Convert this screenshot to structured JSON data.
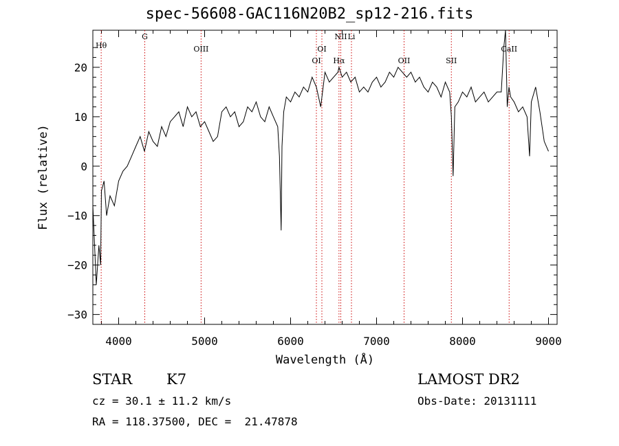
{
  "chart_data": {
    "type": "line",
    "title": "spec-56608-GAC116N20B2_sp12-216.fits",
    "xlabel": "Wavelength (Å)",
    "ylabel": "Flux (relative)",
    "xlim": [
      3700,
      9100
    ],
    "ylim": [
      -32,
      27.5
    ],
    "xticks": [
      4000,
      5000,
      6000,
      7000,
      8000,
      9000
    ],
    "yticks": [
      -30,
      -20,
      -10,
      0,
      10,
      20
    ],
    "grid": false,
    "series": [
      {
        "values_x": [
          3700,
          3740,
          3770,
          3790,
          3800,
          3830,
          3860,
          3900,
          3950,
          4000,
          4050,
          4100,
          4150,
          4200,
          4250,
          4300,
          4350,
          4400,
          4450,
          4500,
          4550,
          4600,
          4650,
          4700,
          4750,
          4800,
          4850,
          4900,
          4950,
          5000,
          5050,
          5100,
          5150,
          5200,
          5250,
          5300,
          5350,
          5400,
          5450,
          5500,
          5550,
          5600,
          5650,
          5700,
          5750,
          5800,
          5850,
          5870,
          5890,
          5900,
          5920,
          5950,
          6000,
          6050,
          6100,
          6150,
          6200,
          6250,
          6300,
          6350,
          6400,
          6450,
          6500,
          6550,
          6563,
          6600,
          6650,
          6700,
          6750,
          6800,
          6850,
          6900,
          6950,
          7000,
          7050,
          7100,
          7150,
          7200,
          7250,
          7300,
          7350,
          7400,
          7450,
          7500,
          7550,
          7600,
          7650,
          7700,
          7750,
          7800,
          7850,
          7870,
          7890,
          7910,
          7950,
          8000,
          8050,
          8100,
          8150,
          8200,
          8250,
          8300,
          8350,
          8400,
          8450,
          8480,
          8500,
          8520,
          8540,
          8560,
          8600,
          8650,
          8700,
          8750,
          8780,
          8800,
          8850,
          8900,
          8950,
          9000
        ],
        "values": [
          -8,
          -24,
          -16,
          -20,
          -5,
          -3,
          -10,
          -6,
          -8,
          -3,
          -1,
          0,
          2,
          4,
          6,
          3,
          7,
          5,
          4,
          8,
          6,
          9,
          10,
          11,
          8,
          12,
          10,
          11,
          8,
          9,
          7,
          5,
          6,
          11,
          12,
          10,
          11,
          8,
          9,
          12,
          11,
          13,
          10,
          9,
          12,
          10,
          8,
          2,
          -13,
          4,
          11,
          14,
          13,
          15,
          14,
          16,
          15,
          18,
          16,
          12,
          19,
          17,
          18,
          19,
          20,
          18,
          19,
          17,
          18,
          15,
          16,
          15,
          17,
          18,
          16,
          17,
          19,
          18,
          20,
          19,
          18,
          19,
          17,
          18,
          16,
          15,
          17,
          16,
          14,
          17,
          15,
          10,
          -2,
          12,
          13,
          15,
          14,
          16,
          13,
          14,
          15,
          13,
          14,
          15,
          15,
          24,
          28,
          12,
          16,
          14,
          13,
          11,
          12,
          10,
          2,
          13,
          16,
          11,
          5,
          3
        ]
      }
    ],
    "line_markers": [
      {
        "label": "Hθ",
        "x": 3797
      },
      {
        "label": "G",
        "x": 4304
      },
      {
        "label": "OIII",
        "x": 4959
      },
      {
        "label": "OI",
        "x": 6300
      },
      {
        "label": "OI",
        "x": 6364
      },
      {
        "label": "Hα",
        "x": 6563
      },
      {
        "label": "NII",
        "x": 6584
      },
      {
        "label": "Li",
        "x": 6708
      },
      {
        "label": "OII",
        "x": 7320
      },
      {
        "label": "SII",
        "x": 7870
      },
      {
        "label": "CaII",
        "x": 8542
      }
    ],
    "marker_color": "#cc0000"
  },
  "info": {
    "class": "STAR",
    "subclass": "K7",
    "survey": "LAMOST DR2",
    "cz": "cz = 30.1 ± 11.2 km/s",
    "obs_date": "Obs-Date: 20131111",
    "coords": "RA = 118.37500, DEC =  21.47878"
  }
}
